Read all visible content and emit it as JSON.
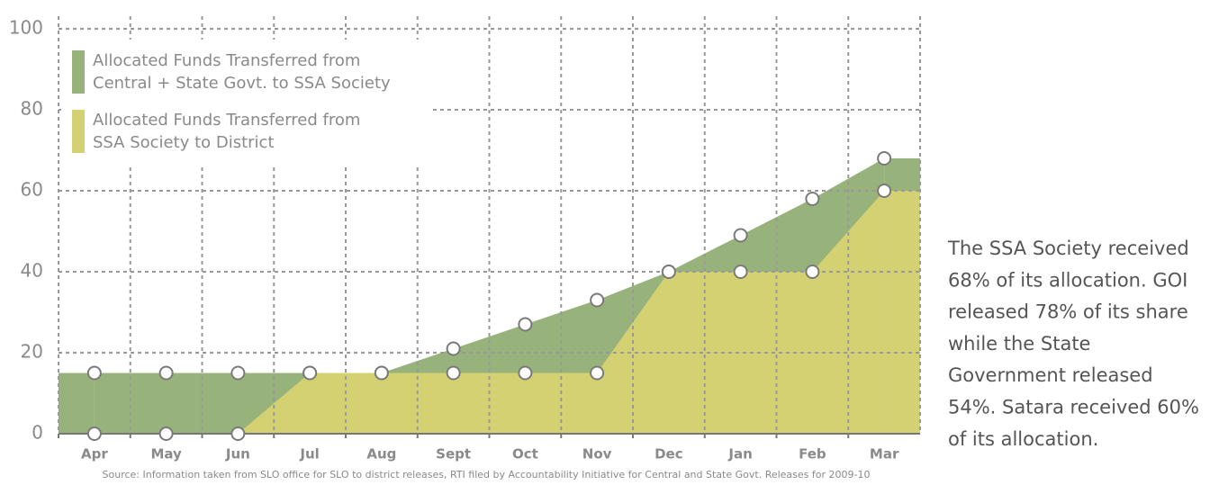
{
  "chart_data": {
    "type": "area",
    "categories": [
      "Apr",
      "May",
      "Jun",
      "Jul",
      "Aug",
      "Sept",
      "Oct",
      "Nov",
      "Dec",
      "Jan",
      "Feb",
      "Mar"
    ],
    "series": [
      {
        "name": "Allocated Funds Transferred from\nCentral + State Govt. to SSA Society",
        "color": "#97b27b",
        "values": [
          15,
          15,
          15,
          15,
          15,
          21,
          27,
          33,
          40,
          49,
          58,
          68
        ]
      },
      {
        "name": "Allocated Funds Transferred from\nSSA Society to District",
        "color": "#d4d172",
        "values": [
          0,
          0,
          0,
          15,
          15,
          15,
          15,
          15,
          40,
          40,
          40,
          60
        ]
      }
    ],
    "ylim": [
      0,
      100
    ],
    "yticks": [
      0,
      20,
      40,
      60,
      80,
      100
    ],
    "grid": true,
    "annotation": [
      "The SSA Society received",
      "68% of its allocation. GOI",
      "released 78% of its share",
      "while the State",
      "Government released",
      "54%. Satara received 60%",
      "of its allocation."
    ],
    "source": "Source: Information taken from SLO office for SLO to district releases, RTI filed by Accountability Initiative for Central and State Govt. Releases for 2009-10"
  }
}
